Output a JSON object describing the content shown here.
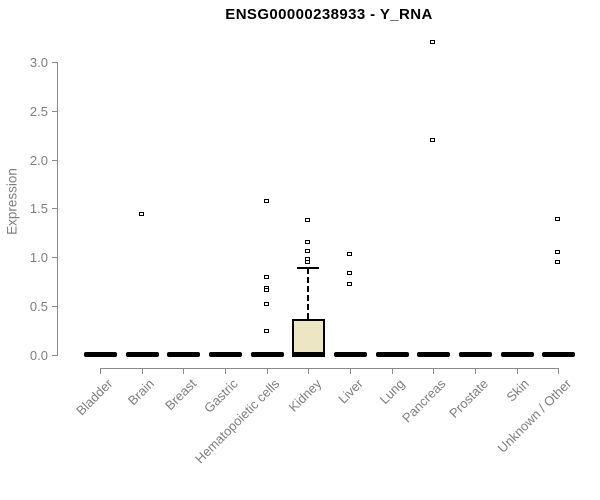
{
  "chart_data": {
    "type": "boxplot",
    "title": "ENSG00000238933 - Y_RNA",
    "ylabel": "Expression",
    "xlabel": "",
    "ylim": [
      0,
      3.25
    ],
    "yticks": [
      0.0,
      0.5,
      1.0,
      1.5,
      2.0,
      2.5,
      3.0
    ],
    "ytick_labels": [
      "0.0",
      "0.5",
      "1.0",
      "1.5",
      "2.0",
      "2.5",
      "3.0"
    ],
    "grid": false,
    "legend": false,
    "categories": [
      "Bladder",
      "Brain",
      "Breast",
      "Gastric",
      "Hematopoietic cells",
      "Kidney",
      "Liver",
      "Lung",
      "Pancreas",
      "Prostate",
      "Skin",
      "Unknown / Other"
    ],
    "boxes": [
      {
        "category": "Bladder",
        "q1": 0,
        "median": 0,
        "q3": 0,
        "whisker_low": 0,
        "whisker_high": 0,
        "outliers": []
      },
      {
        "category": "Brain",
        "q1": 0,
        "median": 0,
        "q3": 0,
        "whisker_low": 0,
        "whisker_high": 0,
        "outliers": [
          1.44
        ]
      },
      {
        "category": "Breast",
        "q1": 0,
        "median": 0,
        "q3": 0,
        "whisker_low": 0,
        "whisker_high": 0,
        "outliers": []
      },
      {
        "category": "Gastric",
        "q1": 0,
        "median": 0,
        "q3": 0,
        "whisker_low": 0,
        "whisker_high": 0,
        "outliers": []
      },
      {
        "category": "Hematopoietic cells",
        "q1": 0,
        "median": 0,
        "q3": 0,
        "whisker_low": 0,
        "whisker_high": 0,
        "outliers": [
          1.58,
          0.8,
          0.69,
          0.67,
          0.52,
          0.25
        ]
      },
      {
        "category": "Kidney",
        "q1": 0,
        "median": 0,
        "q3": 0.37,
        "whisker_low": 0,
        "whisker_high": 0.89,
        "outliers": [
          1.38,
          1.16,
          1.06,
          0.98,
          0.95
        ]
      },
      {
        "category": "Liver",
        "q1": 0,
        "median": 0,
        "q3": 0,
        "whisker_low": 0,
        "whisker_high": 0,
        "outliers": [
          1.03,
          0.84,
          0.73
        ]
      },
      {
        "category": "Lung",
        "q1": 0,
        "median": 0,
        "q3": 0,
        "whisker_low": 0,
        "whisker_high": 0,
        "outliers": []
      },
      {
        "category": "Pancreas",
        "q1": 0,
        "median": 0,
        "q3": 0,
        "whisker_low": 0,
        "whisker_high": 0,
        "outliers": [
          3.2,
          2.2
        ]
      },
      {
        "category": "Prostate",
        "q1": 0,
        "median": 0,
        "q3": 0,
        "whisker_low": 0,
        "whisker_high": 0,
        "outliers": []
      },
      {
        "category": "Skin",
        "q1": 0,
        "median": 0,
        "q3": 0,
        "whisker_low": 0,
        "whisker_high": 0,
        "outliers": []
      },
      {
        "category": "Unknown / Other",
        "q1": 0,
        "median": 0,
        "q3": 0,
        "whisker_low": 0,
        "whisker_high": 0,
        "outliers": [
          1.39,
          1.05,
          0.95
        ]
      }
    ],
    "colors": {
      "box_fill": "#ece6c4",
      "box_border": "#000000",
      "median": "#000000",
      "whisker": "#000000",
      "outlier_border": "#000000",
      "outlier_fill": "#ffffff",
      "axis": "#8a8a8a",
      "tick_text": "#7f7f7f",
      "title_text": "#000000",
      "background": "#ffffff"
    }
  }
}
